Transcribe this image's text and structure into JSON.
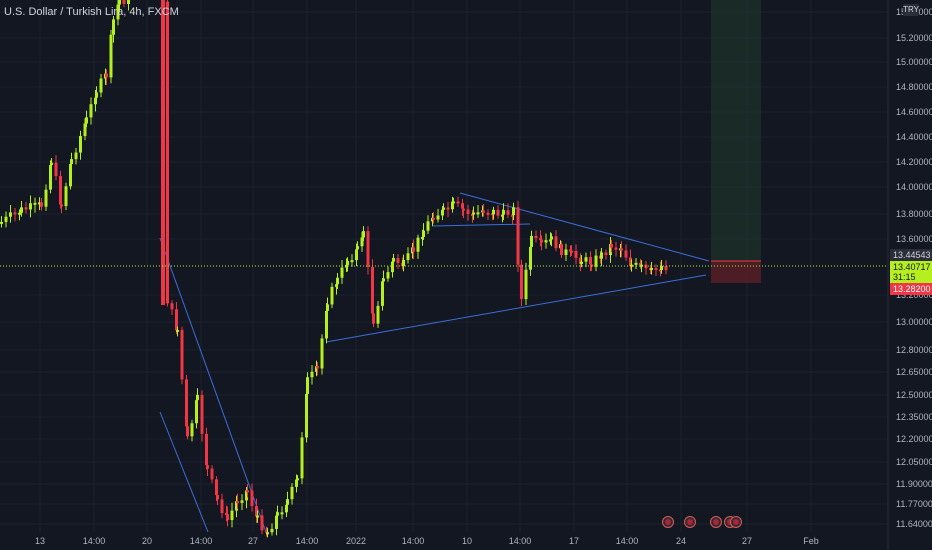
{
  "symbol": {
    "title": "U.S. Dollar / Turkish Lira, 4h, FXCM",
    "currency": "TRY"
  },
  "colors": {
    "background": "#131722",
    "up": "#b5f01e",
    "down": "#f23645",
    "trendline": "#3a6fd8",
    "grid": "#1e222d",
    "last_price_line": "#b5f01e"
  },
  "price_axis": {
    "ticks": [
      "15.40000",
      "15.20000",
      "15.00000",
      "14.80000",
      "14.60000",
      "14.40000",
      "14.20000",
      "14.00000",
      "13.80000",
      "13.60000",
      "13.20000",
      "13.00000",
      "12.80000",
      "12.65000",
      "12.50000",
      "12.35000",
      "12.20000",
      "12.05000",
      "11.90000",
      "11.77000",
      "11.64000"
    ]
  },
  "price_tags": {
    "target": "13.44543",
    "last_price": "13.40717",
    "countdown": "31:15",
    "stop": "13.28200"
  },
  "time_axis": {
    "ticks": [
      "13",
      "14:00",
      "20",
      "14:00",
      "27",
      "14:00",
      "2022",
      "14:00",
      "10",
      "14:00",
      "17",
      "14:00",
      "24",
      "27",
      "Feb"
    ]
  },
  "event_markers": [
    {
      "icon": "us-flag-event-icon"
    },
    {
      "icon": "us-flag-event-icon"
    },
    {
      "icon": "us-flag-event-icon"
    },
    {
      "icon": "us-flag-event-icon"
    },
    {
      "icon": "us-flag-event-icon"
    }
  ],
  "chart_data": {
    "type": "candlestick",
    "interval": "4h",
    "drawings": [
      "symmetrical-triangle",
      "falling-channel",
      "long-position-tool"
    ],
    "long_position": {
      "target": 13.44543,
      "stop": 13.282
    },
    "last_price": 13.40717
  }
}
